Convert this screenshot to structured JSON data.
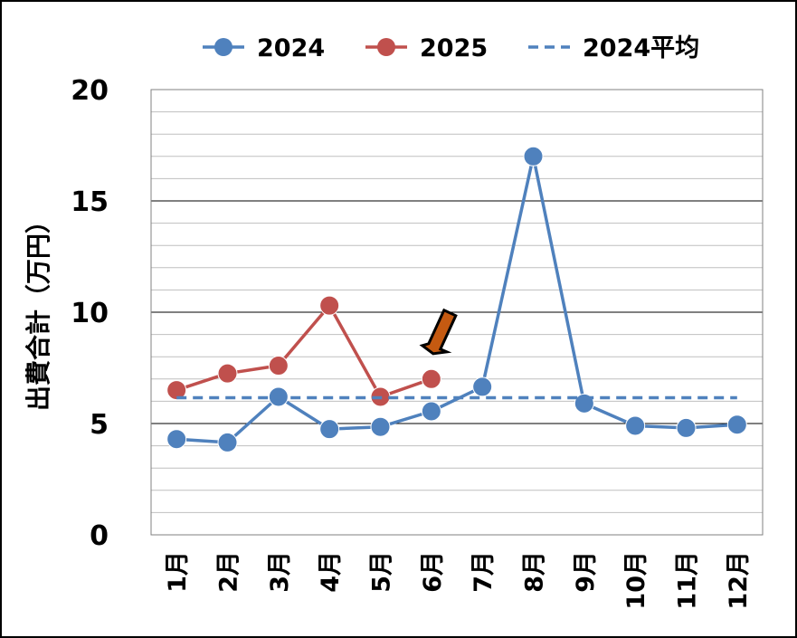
{
  "chart_data": {
    "type": "line",
    "title": "",
    "xlabel": "",
    "ylabel": "出費合計（万円）",
    "categories": [
      "1月",
      "2月",
      "3月",
      "4月",
      "5月",
      "6月",
      "7月",
      "8月",
      "9月",
      "10月",
      "11月",
      "12月"
    ],
    "ylim": [
      0,
      20
    ],
    "yticks": [
      0,
      5,
      10,
      15,
      20
    ],
    "minor_grid_step": 1,
    "grid": true,
    "legend_position": "top",
    "series": [
      {
        "name": "2024",
        "color": "#4f81bd",
        "style": "solid-markers",
        "values": [
          4.3,
          4.15,
          6.2,
          4.75,
          4.85,
          5.55,
          6.65,
          17.0,
          5.9,
          4.9,
          4.8,
          4.95
        ]
      },
      {
        "name": "2025",
        "color": "#c0504d",
        "style": "solid-markers",
        "values": [
          6.5,
          7.25,
          7.6,
          10.3,
          6.2,
          7.0,
          null,
          null,
          null,
          null,
          null,
          null
        ]
      },
      {
        "name": "2024平均",
        "color": "#4f81bd",
        "style": "dashed",
        "values": [
          6.16,
          6.16,
          6.16,
          6.16,
          6.16,
          6.16,
          6.16,
          6.16,
          6.16,
          6.16,
          6.16,
          6.16
        ]
      }
    ],
    "annotations": [
      {
        "type": "arrow",
        "color": "#c55a11",
        "points_to": {
          "category": "6月",
          "series": "2025"
        }
      }
    ]
  }
}
